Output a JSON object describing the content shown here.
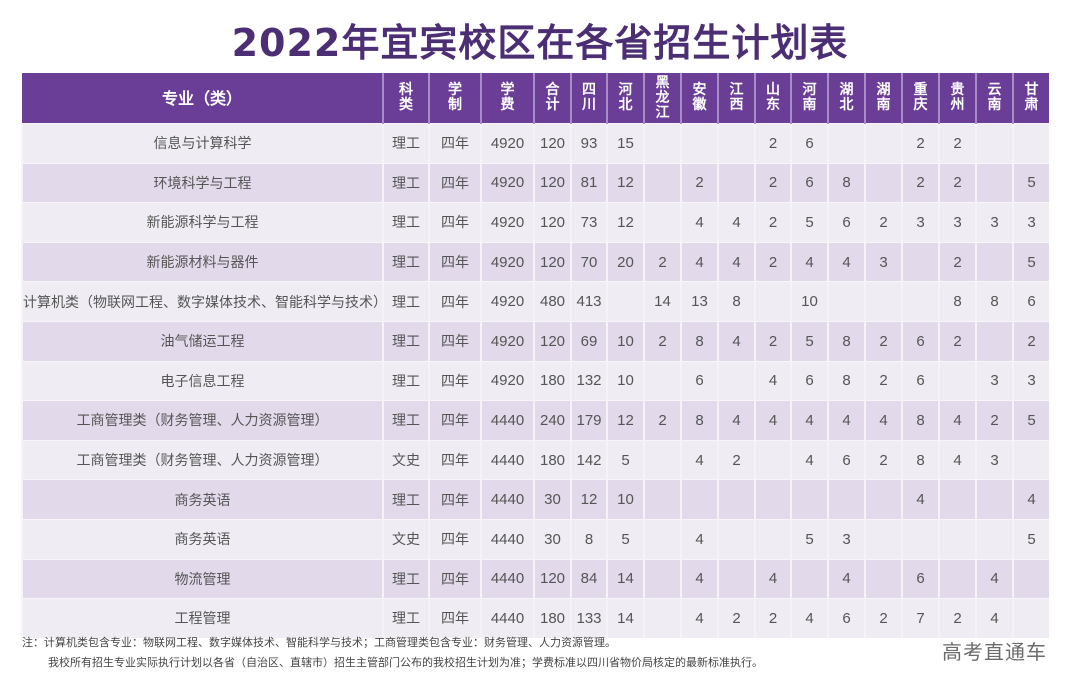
{
  "title": "2022年宜宾校区在各省招生计划表",
  "table": {
    "headers": [
      "专业（类）",
      "科类",
      "学制",
      "学费",
      "合计",
      "四川",
      "河北",
      "黑龙江",
      "安徽",
      "江西",
      "山东",
      "河南",
      "湖北",
      "湖南",
      "重庆",
      "贵州",
      "云南",
      "甘肃"
    ],
    "rows": [
      [
        "信息与计算科学",
        "理工",
        "四年",
        "4920",
        "120",
        "93",
        "15",
        "",
        "",
        "",
        "2",
        "6",
        "",
        "",
        "2",
        "2",
        "",
        ""
      ],
      [
        "环境科学与工程",
        "理工",
        "四年",
        "4920",
        "120",
        "81",
        "12",
        "",
        "2",
        "",
        "2",
        "6",
        "8",
        "",
        "2",
        "2",
        "",
        "5"
      ],
      [
        "新能源科学与工程",
        "理工",
        "四年",
        "4920",
        "120",
        "73",
        "12",
        "",
        "4",
        "4",
        "2",
        "5",
        "6",
        "2",
        "3",
        "3",
        "3",
        "3"
      ],
      [
        "新能源材料与器件",
        "理工",
        "四年",
        "4920",
        "120",
        "70",
        "20",
        "2",
        "4",
        "4",
        "2",
        "4",
        "4",
        "3",
        "",
        "2",
        "",
        "5"
      ],
      [
        "计算机类（物联网工程、数字媒体技术、智能科学与技术）",
        "理工",
        "四年",
        "4920",
        "480",
        "413",
        "",
        "14",
        "13",
        "8",
        "",
        "10",
        "",
        "",
        "",
        "8",
        "8",
        "6"
      ],
      [
        "油气储运工程",
        "理工",
        "四年",
        "4920",
        "120",
        "69",
        "10",
        "2",
        "8",
        "4",
        "2",
        "5",
        "8",
        "2",
        "6",
        "2",
        "",
        "2"
      ],
      [
        "电子信息工程",
        "理工",
        "四年",
        "4920",
        "180",
        "132",
        "10",
        "",
        "6",
        "",
        "4",
        "6",
        "8",
        "2",
        "6",
        "",
        "3",
        "3"
      ],
      [
        "工商管理类（财务管理、人力资源管理）",
        "理工",
        "四年",
        "4440",
        "240",
        "179",
        "12",
        "2",
        "8",
        "4",
        "4",
        "4",
        "4",
        "4",
        "8",
        "4",
        "2",
        "5"
      ],
      [
        "工商管理类（财务管理、人力资源管理）",
        "文史",
        "四年",
        "4440",
        "180",
        "142",
        "5",
        "",
        "4",
        "2",
        "",
        "4",
        "6",
        "2",
        "8",
        "4",
        "3",
        ""
      ],
      [
        "商务英语",
        "理工",
        "四年",
        "4440",
        "30",
        "12",
        "10",
        "",
        "",
        "",
        "",
        "",
        "",
        "",
        "4",
        "",
        "",
        "4"
      ],
      [
        "商务英语",
        "文史",
        "四年",
        "4440",
        "30",
        "8",
        "5",
        "",
        "4",
        "",
        "",
        "5",
        "3",
        "",
        "",
        "",
        "",
        "5"
      ],
      [
        "物流管理",
        "理工",
        "四年",
        "4440",
        "120",
        "84",
        "14",
        "",
        "4",
        "",
        "4",
        "",
        "4",
        "",
        "6",
        "",
        "4",
        ""
      ],
      [
        "工程管理",
        "理工",
        "四年",
        "4440",
        "180",
        "133",
        "14",
        "",
        "4",
        "2",
        "2",
        "4",
        "6",
        "2",
        "7",
        "2",
        "4",
        ""
      ]
    ]
  },
  "notes": {
    "line1": "注：计算机类包含专业：物联网工程、数字媒体技术、智能科学与技术；工商管理类包含专业：财务管理、人力资源管理。",
    "line2": "我校所有招生专业实际执行计划以各省（自治区、直辖市）招生主管部门公布的我校招生计划为准；学费标准以四川省物价局核定的最新标准执行。"
  },
  "watermark": "高考直通车",
  "colors": {
    "header_bg": "#6a3d96",
    "title": "#4b2e74",
    "row_light": "#efedf3",
    "row_dark": "#e2d9ea"
  }
}
